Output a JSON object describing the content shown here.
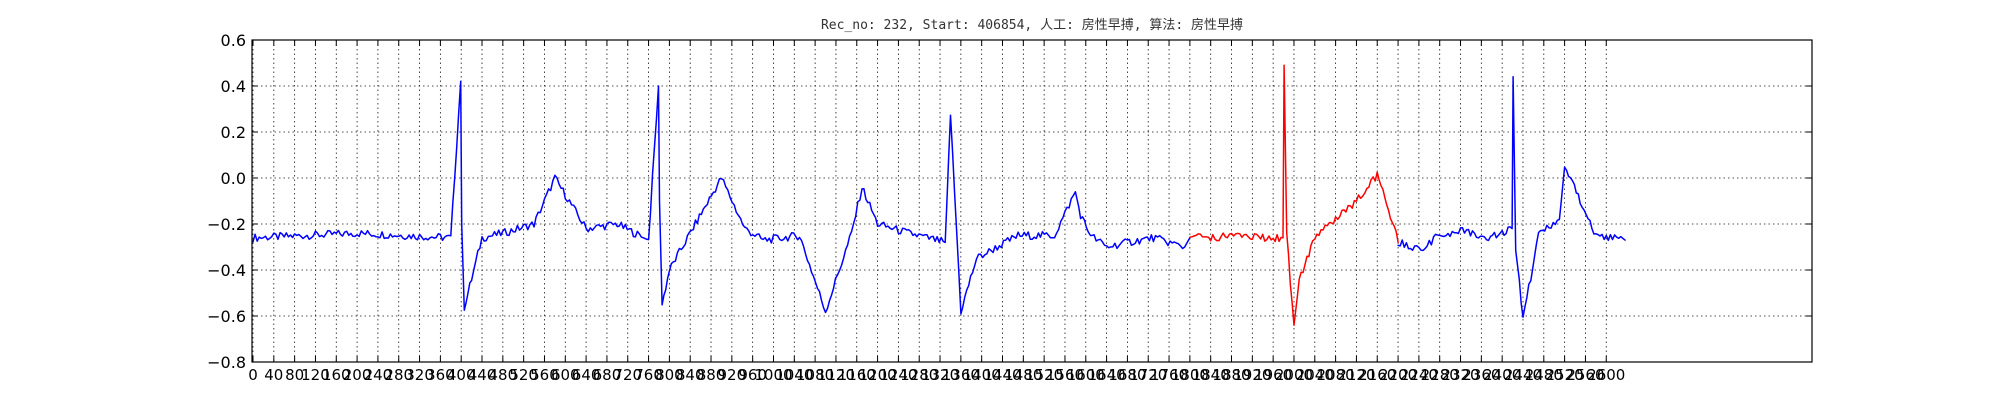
{
  "chart_data": {
    "type": "line",
    "title": "Rec_no: 232, Start: 406854, 人工: 房性早搏, 算法: 房性早搏",
    "xlabel": "",
    "ylabel": "",
    "xlim": [
      0,
      3000
    ],
    "ylim": [
      -0.8,
      0.6
    ],
    "grid": true,
    "yticks": [
      {
        "value": 0.6,
        "label": "0.6"
      },
      {
        "value": 0.4,
        "label": "0.4"
      },
      {
        "value": 0.2,
        "label": "0.2"
      },
      {
        "value": 0.0,
        "label": "0.0"
      },
      {
        "value": -0.2,
        "label": "−0.2"
      },
      {
        "value": -0.4,
        "label": "−0.4"
      },
      {
        "value": -0.6,
        "label": "−0.6"
      },
      {
        "value": -0.8,
        "label": "−0.8"
      }
    ],
    "xtick_labels": [
      "0",
      "40",
      "80",
      "120",
      "160",
      "200",
      "240",
      "280",
      "320",
      "360",
      "400",
      "440",
      "480",
      "520",
      "560",
      "600",
      "640",
      "680",
      "720",
      "760",
      "800",
      "840",
      "880",
      "920",
      "960",
      "1000",
      "1040",
      "1080",
      "1120",
      "1160",
      "1200",
      "1240",
      "1280",
      "1320",
      "1360",
      "1400",
      "1440",
      "1480",
      "1520",
      "1560",
      "1600",
      "1640",
      "1680",
      "1720",
      "1760",
      "1800",
      "1840",
      "1880",
      "1920",
      "1960",
      "2000",
      "2040",
      "2080",
      "2120",
      "2160",
      "2200",
      "2240",
      "2280",
      "2320",
      "2360",
      "2400",
      "2440",
      "2480",
      "2520",
      "2560",
      "2600"
    ],
    "x_max_data": 2636,
    "series": [
      {
        "color": "#0000ff",
        "x": [
          0,
          200,
          380,
          399,
          401,
          406,
          420,
          440,
          480,
          540,
          580,
          640,
          700,
          750,
          760,
          779,
          781,
          786,
          800,
          850,
          900,
          945,
          980,
          1020,
          1050,
          1100,
          1150,
          1170,
          1200,
          1260,
          1330,
          1340,
          1360,
          1390,
          1470,
          1540,
          1580,
          1590,
          1609,
          1611,
          1616,
          1640,
          1680,
          1730,
          1790,
          1800
        ],
        "y": [
          -0.26,
          -0.24,
          -0.26,
          0.42,
          -0.2,
          -0.56,
          -0.44,
          -0.26,
          -0.24,
          -0.2,
          0.0,
          -0.22,
          -0.2,
          -0.26,
          -0.27,
          0.4,
          -0.1,
          -0.55,
          -0.4,
          -0.2,
          0.0,
          -0.22,
          -0.27,
          -0.26,
          -0.25,
          -0.58,
          -0.24,
          -0.04,
          -0.2,
          -0.24,
          -0.28,
          0.28,
          -0.58,
          -0.35,
          -0.25,
          -0.25,
          -0.06,
          -0.16,
          -0.25,
          -0.25,
          -0.26,
          -0.3,
          -0.28,
          -0.26,
          -0.3,
          -0.26
        ]
      },
      {
        "color": "#ff0000",
        "x": [
          1800,
          1840,
          1880,
          1920,
          1940,
          1960,
          1979,
          1981,
          1986,
          2000,
          2010,
          2040,
          2080,
          2120,
          2160,
          2178,
          2200
        ],
        "y": [
          -0.26,
          -0.26,
          -0.25,
          -0.25,
          -0.26,
          -0.26,
          -0.26,
          0.49,
          -0.25,
          -0.64,
          -0.45,
          -0.25,
          -0.18,
          -0.1,
          0.01,
          -0.1,
          -0.28
        ]
      },
      {
        "color": "#0000ff",
        "x": [
          2200,
          2240,
          2280,
          2320,
          2370,
          2400,
          2419,
          2421,
          2426,
          2440,
          2470,
          2510,
          2520,
          2550,
          2580,
          2636
        ],
        "y": [
          -0.28,
          -0.31,
          -0.25,
          -0.23,
          -0.26,
          -0.24,
          -0.22,
          0.44,
          -0.3,
          -0.61,
          -0.25,
          -0.18,
          0.05,
          -0.1,
          -0.25,
          -0.27
        ]
      }
    ]
  }
}
